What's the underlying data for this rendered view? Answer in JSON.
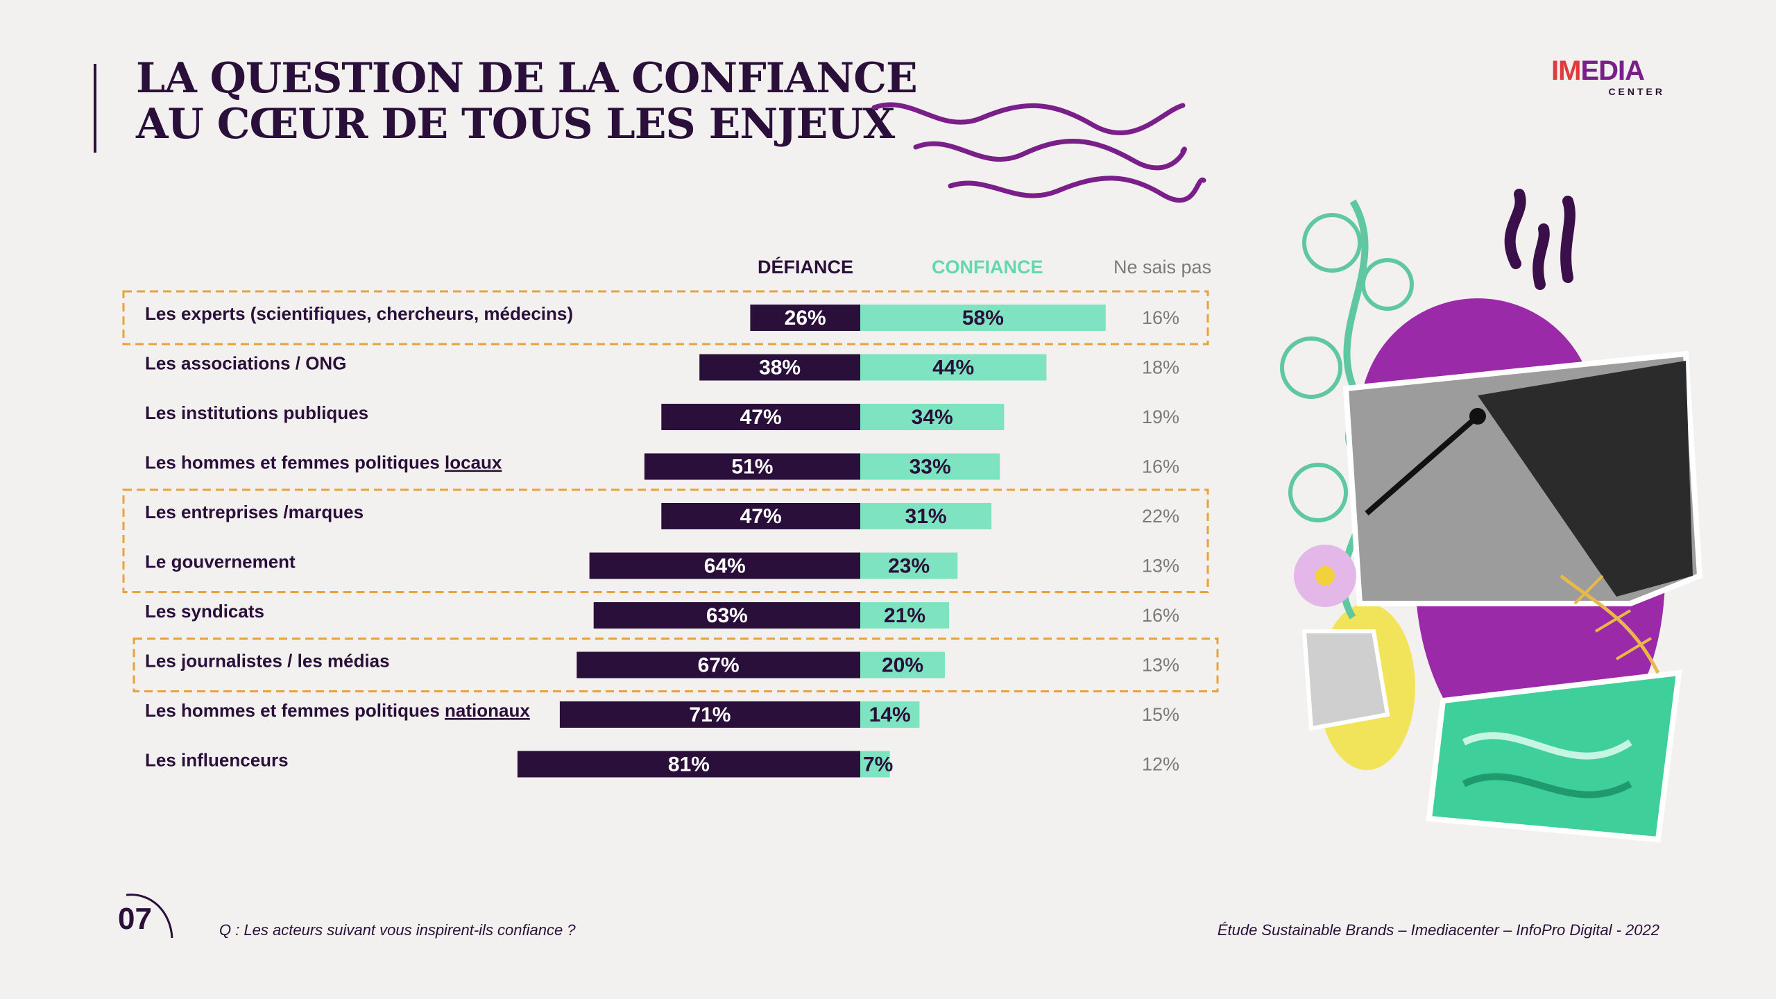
{
  "header": {
    "title_line1": "LA QUESTION DE LA CONFIANCE",
    "title_line2": "AU CŒUR DE TOUS LES ENJEUX"
  },
  "logo": {
    "brand_im": "IM",
    "brand_rest": "EDIA",
    "sub": "CENTER"
  },
  "colors": {
    "defiance": "#2a0f3a",
    "confiance": "#7ee3c0",
    "highlight": "#e8a23c",
    "title": "#2a0f3a",
    "wave": "#7a1f8a"
  },
  "chart_data": {
    "type": "bar",
    "orientation": "horizontal-diverging",
    "column_headers": {
      "defiance": "DÉFIANCE",
      "confiance": "CONFIANCE",
      "ne_sais_pas": "Ne sais pas"
    },
    "categories": [
      {
        "text": "Les experts (scientifiques, chercheurs, médecins)",
        "underlined": ""
      },
      {
        "text": "Les associations / ONG",
        "underlined": ""
      },
      {
        "text": "Les institutions publiques",
        "underlined": ""
      },
      {
        "text": "Les hommes et femmes politiques ",
        "underlined": "locaux"
      },
      {
        "text": "Les entreprises /marques",
        "underlined": ""
      },
      {
        "text": "Le gouvernement",
        "underlined": ""
      },
      {
        "text": "Les syndicats",
        "underlined": ""
      },
      {
        "text": "Les journalistes / les médias",
        "underlined": ""
      },
      {
        "text": "Les hommes et femmes politiques ",
        "underlined": "nationaux"
      },
      {
        "text": "Les influenceurs",
        "underlined": ""
      }
    ],
    "series": [
      {
        "name": "DÉFIANCE",
        "values": [
          26,
          38,
          47,
          51,
          47,
          64,
          63,
          67,
          71,
          81
        ],
        "labels": [
          "26%",
          "38%",
          "47%",
          "51%",
          "47%",
          "64%",
          "63%",
          "67%",
          "71%",
          "81%"
        ]
      },
      {
        "name": "CONFIANCE",
        "values": [
          58,
          44,
          34,
          33,
          31,
          23,
          21,
          20,
          14,
          7
        ],
        "labels": [
          "58%",
          "44%",
          "34%",
          "33%",
          "31%",
          "23%",
          "21%",
          "20%",
          "14%",
          "7%"
        ]
      },
      {
        "name": "Ne sais pas",
        "values": [
          16,
          18,
          19,
          16,
          22,
          13,
          16,
          13,
          15,
          12
        ],
        "labels": [
          "16%",
          "18%",
          "19%",
          "16%",
          "22%",
          "13%",
          "16%",
          "13%",
          "15%",
          "12%"
        ]
      }
    ],
    "highlight_groups": [
      [
        0,
        0
      ],
      [
        4,
        5
      ],
      [
        7,
        7
      ]
    ],
    "unit": "%"
  },
  "footer": {
    "page_number": "07",
    "question": "Q : Les acteurs suivant vous inspirent-ils confiance ?",
    "source": "Étude Sustainable Brands – Imediacenter – InfoPro Digital - 2022"
  }
}
